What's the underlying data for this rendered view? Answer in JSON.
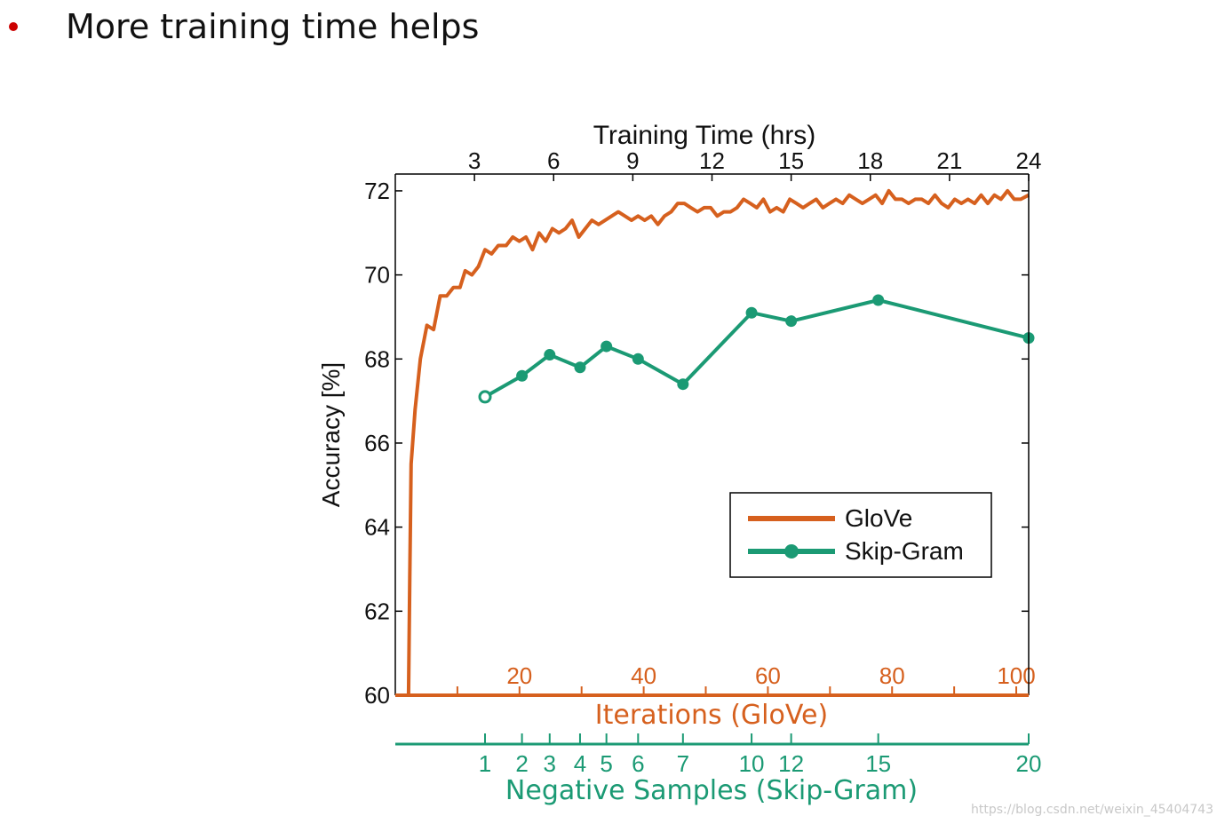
{
  "slide": {
    "bullet": "More training time helps",
    "bullet_color": "#cc0000"
  },
  "colors": {
    "glove": "#d6601e",
    "skipgram": "#1b9a74",
    "axis": "#000000"
  },
  "watermark": "https://blog.csdn.net/weixin_45404743",
  "chart_data": {
    "type": "line",
    "ylabel": "Accuracy [%]",
    "ylim": [
      60,
      72.4
    ],
    "yticks": [
      60,
      62,
      64,
      66,
      68,
      70,
      72
    ],
    "top_axis": {
      "label": "Training Time (hrs)",
      "lim": [
        0,
        24
      ],
      "ticks": [
        3,
        6,
        9,
        12,
        15,
        18,
        21,
        24
      ]
    },
    "glove_axis": {
      "label": "Iterations (GloVe)",
      "lim": [
        0,
        102
      ],
      "ticks": [
        20,
        40,
        60,
        80,
        100
      ],
      "minor_ticks": [
        10,
        30,
        50,
        70,
        90
      ]
    },
    "skipgram_axis": {
      "label": "Negative Samples (Skip-Gram)",
      "ticks": [
        "1",
        "2",
        "3",
        "4",
        "5",
        "6",
        "7",
        "10",
        "12",
        "15",
        "20"
      ]
    },
    "legend": {
      "position": "right",
      "entries": [
        "GloVe",
        "Skip-Gram"
      ]
    },
    "series": [
      {
        "name": "GloVe",
        "x_hours": [
          0.5,
          0.55,
          0.6,
          0.75,
          0.95,
          1.2,
          1.45,
          1.7,
          1.95,
          2.2,
          2.45,
          2.65,
          2.9,
          3.15,
          3.4,
          3.65,
          3.9,
          4.2,
          4.45,
          4.7,
          4.95,
          5.2,
          5.45,
          5.7,
          5.95,
          6.2,
          6.45,
          6.7,
          6.95,
          7.2,
          7.45,
          7.7,
          7.95,
          8.2,
          8.45,
          8.7,
          8.95,
          9.2,
          9.45,
          9.7,
          9.95,
          10.2,
          10.45,
          10.7,
          10.95,
          11.2,
          11.45,
          11.7,
          11.95,
          12.2,
          12.45,
          12.7,
          12.95,
          13.2,
          13.45,
          13.7,
          13.95,
          14.2,
          14.45,
          14.7,
          14.95,
          15.2,
          15.45,
          15.7,
          15.95,
          16.2,
          16.45,
          16.7,
          16.95,
          17.2,
          17.45,
          17.7,
          17.95,
          18.2,
          18.45,
          18.7,
          18.95,
          19.2,
          19.45,
          19.7,
          19.95,
          20.2,
          20.45,
          20.7,
          20.95,
          21.2,
          21.45,
          21.7,
          21.95,
          22.2,
          22.45,
          22.7,
          22.95,
          23.2,
          23.45,
          23.7,
          24.0
        ],
        "y": [
          60.0,
          62.8,
          65.5,
          66.8,
          68.0,
          68.8,
          68.7,
          69.5,
          69.5,
          69.7,
          69.7,
          70.1,
          70.0,
          70.2,
          70.6,
          70.5,
          70.7,
          70.7,
          70.9,
          70.8,
          70.9,
          70.6,
          71.0,
          70.8,
          71.1,
          71.0,
          71.1,
          71.3,
          70.9,
          71.1,
          71.3,
          71.2,
          71.3,
          71.4,
          71.5,
          71.4,
          71.3,
          71.4,
          71.3,
          71.4,
          71.2,
          71.4,
          71.5,
          71.7,
          71.7,
          71.6,
          71.5,
          71.6,
          71.6,
          71.4,
          71.5,
          71.5,
          71.6,
          71.8,
          71.7,
          71.6,
          71.8,
          71.5,
          71.6,
          71.5,
          71.8,
          71.7,
          71.6,
          71.7,
          71.8,
          71.6,
          71.7,
          71.8,
          71.7,
          71.9,
          71.8,
          71.7,
          71.8,
          71.9,
          71.7,
          72.0,
          71.8,
          71.8,
          71.7,
          71.8,
          71.8,
          71.7,
          71.9,
          71.7,
          71.6,
          71.8,
          71.7,
          71.8,
          71.7,
          71.9,
          71.7,
          71.9,
          71.8,
          72.0,
          71.8,
          71.8,
          71.9
        ]
      },
      {
        "name": "Skip-Gram",
        "x_hours": [
          3.4,
          4.8,
          5.85,
          7.0,
          8.0,
          9.2,
          10.9,
          13.5,
          15.0,
          18.3,
          24.0
        ],
        "y": [
          67.1,
          67.6,
          68.1,
          67.8,
          68.3,
          68.0,
          67.4,
          69.1,
          68.9,
          69.4,
          68.5
        ],
        "negative_samples": [
          "1",
          "2",
          "3",
          "4",
          "5",
          "6",
          "7",
          "10",
          "12",
          "15",
          "20"
        ]
      }
    ]
  }
}
